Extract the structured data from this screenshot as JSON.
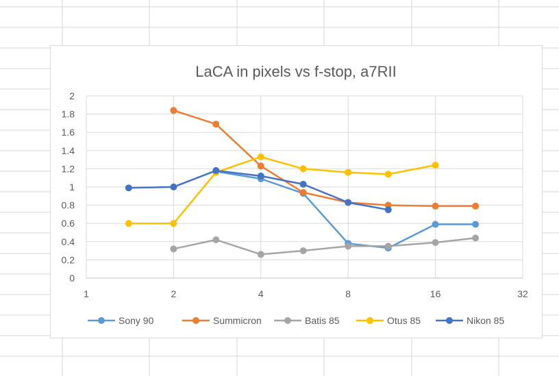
{
  "colors": {
    "sheet_gridline": "#d4d4d4",
    "plot_gridline": "#d9d9d9",
    "axis_text": "#595959",
    "title_text": "#595959"
  },
  "chart_data": {
    "type": "line",
    "title": "LaCA in pixels vs f-stop, a7RII",
    "xlabel": "",
    "ylabel": "",
    "x_scale": "log2",
    "xlim": [
      1,
      32
    ],
    "ylim": [
      0,
      2
    ],
    "x_ticks": [
      "1",
      "2",
      "4",
      "8",
      "16",
      "32"
    ],
    "y_ticks": [
      "0",
      "0.2",
      "0.4",
      "0.6",
      "0.8",
      "1",
      "1.2",
      "1.4",
      "1.6",
      "1.8",
      "2"
    ],
    "grid": true,
    "legend_position": "bottom",
    "series": [
      {
        "name": "Sony 90",
        "color": "#5b9bd5",
        "x": [
          2.8,
          4,
          5.6,
          8,
          11,
          16,
          22
        ],
        "y": [
          1.17,
          1.09,
          0.93,
          0.38,
          0.33,
          0.59,
          0.59
        ]
      },
      {
        "name": "Summicron",
        "color": "#ed7d31",
        "x": [
          2,
          2.8,
          4,
          5.6,
          8,
          11,
          16,
          22
        ],
        "y": [
          1.84,
          1.69,
          1.23,
          0.94,
          0.83,
          0.8,
          0.79,
          0.79
        ]
      },
      {
        "name": "Batis 85",
        "color": "#a5a5a5",
        "x": [
          2,
          2.8,
          4,
          5.6,
          8,
          11,
          16,
          22
        ],
        "y": [
          0.32,
          0.42,
          0.26,
          0.3,
          0.35,
          0.35,
          0.39,
          0.44
        ]
      },
      {
        "name": "Otus 85",
        "color": "#ffc000",
        "x": [
          1.4,
          2,
          2.8,
          4,
          5.6,
          8,
          11,
          16
        ],
        "y": [
          0.6,
          0.6,
          1.16,
          1.33,
          1.2,
          1.16,
          1.14,
          1.24
        ]
      },
      {
        "name": "Nikon 85",
        "color": "#4472c4",
        "x": [
          1.4,
          2,
          2.8,
          4,
          5.6,
          8,
          11
        ],
        "y": [
          0.99,
          1.0,
          1.18,
          1.12,
          1.03,
          0.83,
          0.75
        ]
      }
    ]
  }
}
